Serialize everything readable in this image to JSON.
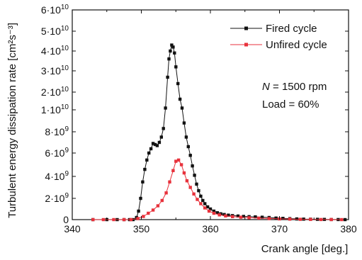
{
  "chart_data": {
    "type": "line",
    "title": "",
    "xlabel": "Crank angle [deg.]",
    "ylabel": "Turbulent energy dissipation rate [cm²s⁻³]",
    "xlim": [
      340,
      380
    ],
    "ylim": [
      0,
      60000000000.0
    ],
    "x_ticks": [
      340,
      350,
      360,
      370,
      380
    ],
    "y_ticks": [
      0,
      2000000000.0,
      4000000000.0,
      6000000000.0,
      8000000000.0,
      10000000000.0,
      20000000000.0,
      30000000000.0,
      40000000000.0,
      50000000000.0,
      60000000000.0
    ],
    "x_tick_labels": [
      "340",
      "350",
      "360",
      "370",
      "380"
    ],
    "y_tick_labels": [
      {
        "base": "0",
        "exp": ""
      },
      {
        "base": "2·10",
        "exp": "9"
      },
      {
        "base": "4·10",
        "exp": "9"
      },
      {
        "base": "6·10",
        "exp": "9"
      },
      {
        "base": "8·10",
        "exp": "9"
      },
      {
        "base": "1·10",
        "exp": "10"
      },
      {
        "base": "2·10",
        "exp": "10"
      },
      {
        "base": "3·10",
        "exp": "10"
      },
      {
        "base": "4·10",
        "exp": "10"
      },
      {
        "base": "5·10",
        "exp": "10"
      },
      {
        "base": "6·10",
        "exp": "10"
      }
    ],
    "legend_position": "top-right",
    "grid": false,
    "series": [
      {
        "name": "Fired cycle",
        "color": "#111111",
        "marker": "square",
        "points": [
          [
            343,
            0.0
          ],
          [
            345,
            0.0
          ],
          [
            346.5,
            0.0
          ],
          [
            347.5,
            0.0
          ],
          [
            348.3,
            0.0
          ],
          [
            348.8,
            0.0
          ],
          [
            349.3,
            200000000.0
          ],
          [
            349.6,
            800000000.0
          ],
          [
            349.9,
            2000000000.0
          ],
          [
            350.2,
            3500000000.0
          ],
          [
            350.5,
            4600000000.0
          ],
          [
            350.8,
            5400000000.0
          ],
          [
            351.1,
            6000000000.0
          ],
          [
            351.4,
            6400000000.0
          ],
          [
            351.7,
            6900000000.0
          ],
          [
            352.0,
            6800000000.0
          ],
          [
            352.3,
            6700000000.0
          ],
          [
            352.6,
            7000000000.0
          ],
          [
            352.9,
            7500000000.0
          ],
          [
            353.2,
            8300000000.0
          ],
          [
            353.5,
            11000000000.0
          ],
          [
            353.8,
            27000000000.0
          ],
          [
            354.0,
            36000000000.0
          ],
          [
            354.2,
            40000000000.0
          ],
          [
            354.4,
            43000000000.0
          ],
          [
            354.6,
            42000000000.0
          ],
          [
            354.8,
            39000000000.0
          ],
          [
            355.0,
            32000000000.0
          ],
          [
            355.3,
            24000000000.0
          ],
          [
            355.6,
            16000000000.0
          ],
          [
            355.9,
            11000000000.0
          ],
          [
            356.2,
            8800000000.0
          ],
          [
            356.5,
            7500000000.0
          ],
          [
            356.8,
            6600000000.0
          ],
          [
            357.1,
            5800000000.0
          ],
          [
            357.4,
            4900000000.0
          ],
          [
            357.7,
            4100000000.0
          ],
          [
            358.0,
            3300000000.0
          ],
          [
            358.3,
            2700000000.0
          ],
          [
            358.6,
            2200000000.0
          ],
          [
            358.9,
            1800000000.0
          ],
          [
            359.2,
            1500000000.0
          ],
          [
            359.6,
            1200000000.0
          ],
          [
            360.0,
            1000000000.0
          ],
          [
            360.5,
            800000000.0
          ],
          [
            361.0,
            650000000.0
          ],
          [
            361.5,
            550000000.0
          ],
          [
            362.0,
            480000000.0
          ],
          [
            362.6,
            420000000.0
          ],
          [
            363.2,
            380000000.0
          ],
          [
            364.0,
            340000000.0
          ],
          [
            364.8,
            300000000.0
          ],
          [
            365.6,
            280000000.0
          ],
          [
            366.5,
            260000000.0
          ],
          [
            367.5,
            230000000.0
          ],
          [
            368.5,
            200000000.0
          ],
          [
            369.5,
            150000000.0
          ],
          [
            370.5,
            120000000.0
          ],
          [
            371.5,
            90000000.0
          ],
          [
            372.5,
            70000000.0
          ],
          [
            373.5,
            50000000.0
          ],
          [
            374.5,
            40000000.0
          ],
          [
            375.5,
            30000000.0
          ],
          [
            376.5,
            20000000.0
          ],
          [
            377.5,
            10000000.0
          ],
          [
            378.5,
            5000000.0
          ],
          [
            379.5,
            0.0
          ]
        ]
      },
      {
        "name": "Unfired cycle",
        "color": "#e8323c",
        "marker": "square",
        "points": [
          [
            343,
            0.0
          ],
          [
            344.5,
            0.0
          ],
          [
            346,
            0.0
          ],
          [
            347.5,
            0.0
          ],
          [
            348.5,
            0.0
          ],
          [
            349.5,
            100000000.0
          ],
          [
            350.3,
            300000000.0
          ],
          [
            351.0,
            600000000.0
          ],
          [
            351.7,
            900000000.0
          ],
          [
            352.4,
            1300000000.0
          ],
          [
            353.0,
            1800000000.0
          ],
          [
            353.6,
            2500000000.0
          ],
          [
            354.1,
            3500000000.0
          ],
          [
            354.6,
            4500000000.0
          ],
          [
            355.0,
            5300000000.0
          ],
          [
            355.4,
            5400000000.0
          ],
          [
            355.8,
            5000000000.0
          ],
          [
            356.2,
            4300000000.0
          ],
          [
            356.6,
            3600000000.0
          ],
          [
            357.1,
            3000000000.0
          ],
          [
            357.6,
            2400000000.0
          ],
          [
            358.1,
            1900000000.0
          ],
          [
            358.6,
            1500000000.0
          ],
          [
            359.2,
            1100000000.0
          ],
          [
            359.8,
            800000000.0
          ],
          [
            360.5,
            600000000.0
          ],
          [
            361.3,
            450000000.0
          ],
          [
            362.2,
            350000000.0
          ],
          [
            363.2,
            280000000.0
          ],
          [
            364.4,
            230000000.0
          ],
          [
            365.6,
            180000000.0
          ],
          [
            367.0,
            140000000.0
          ],
          [
            368.5,
            100000000.0
          ],
          [
            370.0,
            70000000.0
          ],
          [
            371.5,
            50000000.0
          ],
          [
            373.0,
            30000000.0
          ],
          [
            374.5,
            20000000.0
          ],
          [
            376.0,
            10000000.0
          ],
          [
            377.5,
            5000000.0
          ],
          [
            379.0,
            0.0
          ]
        ]
      }
    ],
    "annotations": [
      {
        "italic": "N",
        "rest": " = 1500 rpm"
      },
      {
        "italic": "",
        "rest": "Load = 60%"
      }
    ]
  }
}
